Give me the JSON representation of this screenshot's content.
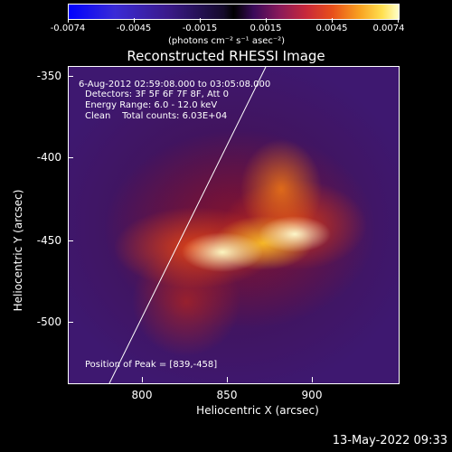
{
  "colorbar": {
    "labels": [
      "-0.0074",
      "-0.0045",
      "-0.0015",
      "0.0015",
      "0.0045",
      "0.0074"
    ],
    "units": "(photons cm⁻² s⁻¹ asec⁻²)"
  },
  "title": "Reconstructed RHESSI Image",
  "info": {
    "time": "6-Aug-2012 02:59:08.000 to 03:05:08.000",
    "detectors": "Detectors: 3F 5F 6F 7F 8F, Att 0",
    "energy": "Energy Range: 6.0 - 12.0 keV",
    "clean": "Clean    Total counts: 6.03E+04"
  },
  "peak": "Position of Peak = [839,-458]",
  "axes": {
    "x_title": "Heliocentric X (arcsec)",
    "y_title": "Heliocentric Y (arcsec)",
    "x_ticks": [
      "800",
      "850",
      "900"
    ],
    "y_ticks": [
      "-350",
      "-400",
      "-450",
      "-500"
    ]
  },
  "timestamp": "13-May-2022 09:33"
}
